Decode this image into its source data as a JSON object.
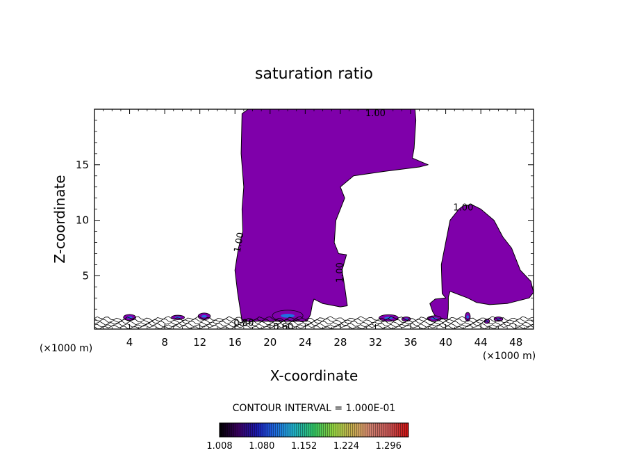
{
  "chart_data": {
    "type": "contour",
    "title": "saturation ratio",
    "xlabel": "X-coordinate",
    "ylabel": "Z-coordinate",
    "x_unit_left": "(×1000 m)",
    "x_unit_right": "(×1000 m)",
    "xlim": [
      0,
      50
    ],
    "ylim": [
      0.2,
      20
    ],
    "x_ticks": [
      4,
      8,
      12,
      16,
      20,
      24,
      28,
      32,
      36,
      40,
      44,
      48
    ],
    "x_tick_labels": [
      "4",
      "8",
      "12",
      "16",
      "20",
      "24",
      "28",
      "32",
      "36",
      "40",
      "44",
      "48"
    ],
    "y_ticks": [
      5,
      10,
      15
    ],
    "y_tick_labels": [
      "5",
      "10",
      "15"
    ],
    "contour_interval_text": "CONTOUR INTERVAL = 1.000E-01",
    "contour_labels": [
      {
        "text": "1.00",
        "x": 32.0,
        "y": 19.6,
        "angle": 0
      },
      {
        "text": "1.00",
        "x": 16.5,
        "y": 8.0,
        "angle": -80
      },
      {
        "text": "1.00",
        "x": 28.0,
        "y": 5.3,
        "angle": -90
      },
      {
        "text": "1.00",
        "x": 42.0,
        "y": 11.1,
        "angle": 0
      },
      {
        "text": "0.80",
        "x": 17.0,
        "y": 0.7,
        "angle": 0
      },
      {
        "text": "0.60",
        "x": 21.5,
        "y": 0.35,
        "angle": 0
      }
    ],
    "fill_color": "#7f00aa",
    "colorbar": {
      "vmin": 1.008,
      "vmax": 1.33,
      "tick_values": [
        1.008,
        1.08,
        1.152,
        1.224,
        1.296
      ],
      "tick_labels": [
        "1.008",
        "1.080",
        "1.152",
        "1.224",
        "1.296"
      ],
      "colors": [
        "#000000",
        "#3a0060",
        "#1a1ab0",
        "#2070e0",
        "#20b0c0",
        "#30c060",
        "#90d040",
        "#c8b050",
        "#d08070",
        "#c05050",
        "#d01010"
      ]
    },
    "regions": [
      {
        "name": "left-plume",
        "polygon": [
          [
            16.8,
            0.9
          ],
          [
            16.3,
            3.5
          ],
          [
            16.0,
            5.5
          ],
          [
            16.4,
            7.5
          ],
          [
            16.9,
            9.0
          ],
          [
            16.8,
            11.0
          ],
          [
            17.0,
            13.0
          ],
          [
            16.7,
            16.0
          ],
          [
            16.8,
            19.6
          ],
          [
            17.5,
            20
          ],
          [
            23.0,
            20
          ],
          [
            30.0,
            20
          ],
          [
            36.5,
            20
          ],
          [
            36.6,
            19.0
          ],
          [
            36.4,
            16.5
          ],
          [
            36.2,
            15.6
          ],
          [
            38.0,
            15.0
          ],
          [
            37.0,
            14.8
          ],
          [
            33.0,
            14.4
          ],
          [
            29.5,
            14.0
          ],
          [
            28.0,
            13.0
          ],
          [
            28.5,
            12.0
          ],
          [
            27.5,
            10.0
          ],
          [
            27.3,
            8.0
          ],
          [
            27.8,
            7.0
          ],
          [
            28.7,
            6.9
          ],
          [
            28.2,
            5.5
          ],
          [
            28.5,
            4.0
          ],
          [
            28.8,
            2.3
          ],
          [
            28.0,
            2.2
          ],
          [
            26.0,
            2.5
          ],
          [
            25.0,
            2.9
          ],
          [
            24.8,
            2.4
          ],
          [
            24.6,
            1.5
          ],
          [
            24.2,
            0.9
          ]
        ]
      },
      {
        "name": "right-cloud",
        "polygon": [
          [
            38.5,
            1.8
          ],
          [
            38.2,
            2.5
          ],
          [
            38.8,
            2.9
          ],
          [
            40.0,
            3.0
          ],
          [
            39.6,
            3.4
          ],
          [
            39.5,
            6.0
          ],
          [
            40.0,
            8.0
          ],
          [
            40.5,
            10.0
          ],
          [
            41.5,
            11.0
          ],
          [
            42.0,
            11.3
          ],
          [
            43.0,
            11.4
          ],
          [
            44.0,
            11.0
          ],
          [
            45.5,
            10.0
          ],
          [
            46.5,
            8.5
          ],
          [
            47.5,
            7.5
          ],
          [
            48.5,
            5.5
          ],
          [
            49.7,
            4.5
          ],
          [
            50,
            3.5
          ],
          [
            49.5,
            3.0
          ],
          [
            47.0,
            2.5
          ],
          [
            45.0,
            2.4
          ],
          [
            43.5,
            2.6
          ],
          [
            42.5,
            3.0
          ],
          [
            41.5,
            3.3
          ],
          [
            40.5,
            3.6
          ],
          [
            40.3,
            3.1
          ],
          [
            40.3,
            2.0
          ],
          [
            40.2,
            1.1
          ],
          [
            39.0,
            1.1
          ]
        ]
      }
    ],
    "blobs": [
      {
        "x": 4.0,
        "y": 1.25,
        "w": 1.4,
        "h": 0.55
      },
      {
        "x": 9.5,
        "y": 1.25,
        "w": 1.5,
        "h": 0.4
      },
      {
        "x": 12.5,
        "y": 1.35,
        "w": 1.4,
        "h": 0.6
      },
      {
        "x": 22.0,
        "y": 1.4,
        "w": 3.5,
        "h": 1.0
      },
      {
        "x": 33.5,
        "y": 1.2,
        "w": 2.2,
        "h": 0.6
      },
      {
        "x": 35.5,
        "y": 1.1,
        "w": 1.0,
        "h": 0.4
      },
      {
        "x": 38.7,
        "y": 1.15,
        "w": 1.6,
        "h": 0.5
      },
      {
        "x": 42.5,
        "y": 1.3,
        "w": 0.6,
        "h": 0.8
      },
      {
        "x": 44.7,
        "y": 0.9,
        "w": 0.6,
        "h": 0.4
      },
      {
        "x": 46.0,
        "y": 1.1,
        "w": 1.0,
        "h": 0.4
      }
    ]
  }
}
